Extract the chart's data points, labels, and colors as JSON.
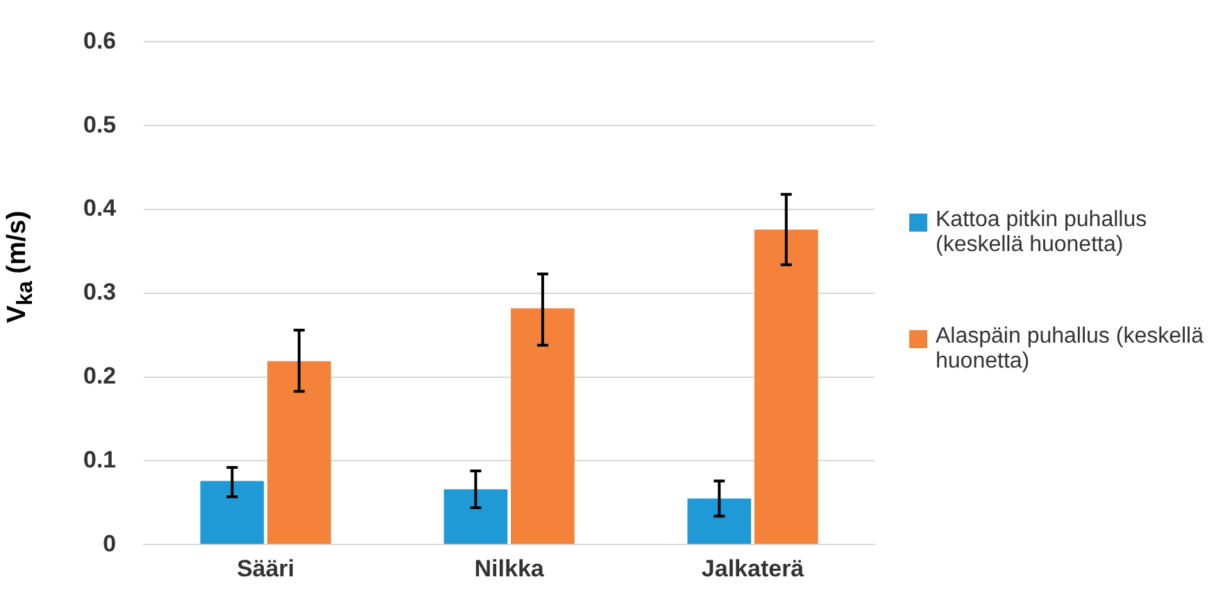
{
  "chart_data": {
    "type": "bar",
    "ylabel": "V$_{ka}$ (m/s)",
    "categories": [
      "Sääri",
      "Nilkka",
      "Jalkaterä"
    ],
    "series": [
      {
        "name": "Kattoa pitkin puhallus (keskellä huonetta)",
        "color": "#1f9ad6",
        "values": [
          0.076,
          0.066,
          0.055
        ],
        "errors": [
          [
            0.057,
            0.092
          ],
          [
            0.044,
            0.088
          ],
          [
            0.034,
            0.076
          ]
        ]
      },
      {
        "name": "Alaspäin puhallus (keskellä huonetta)",
        "color": "#f5823a",
        "values": [
          0.219,
          0.282,
          0.376
        ],
        "errors": [
          [
            0.183,
            0.256
          ],
          [
            0.238,
            0.323
          ],
          [
            0.334,
            0.418
          ]
        ]
      }
    ],
    "ylim": [
      0,
      0.6
    ],
    "yticks": [
      0,
      0.1,
      0.2,
      0.3,
      0.4,
      0.5,
      0.6
    ],
    "grid": "y",
    "legend": "right"
  }
}
